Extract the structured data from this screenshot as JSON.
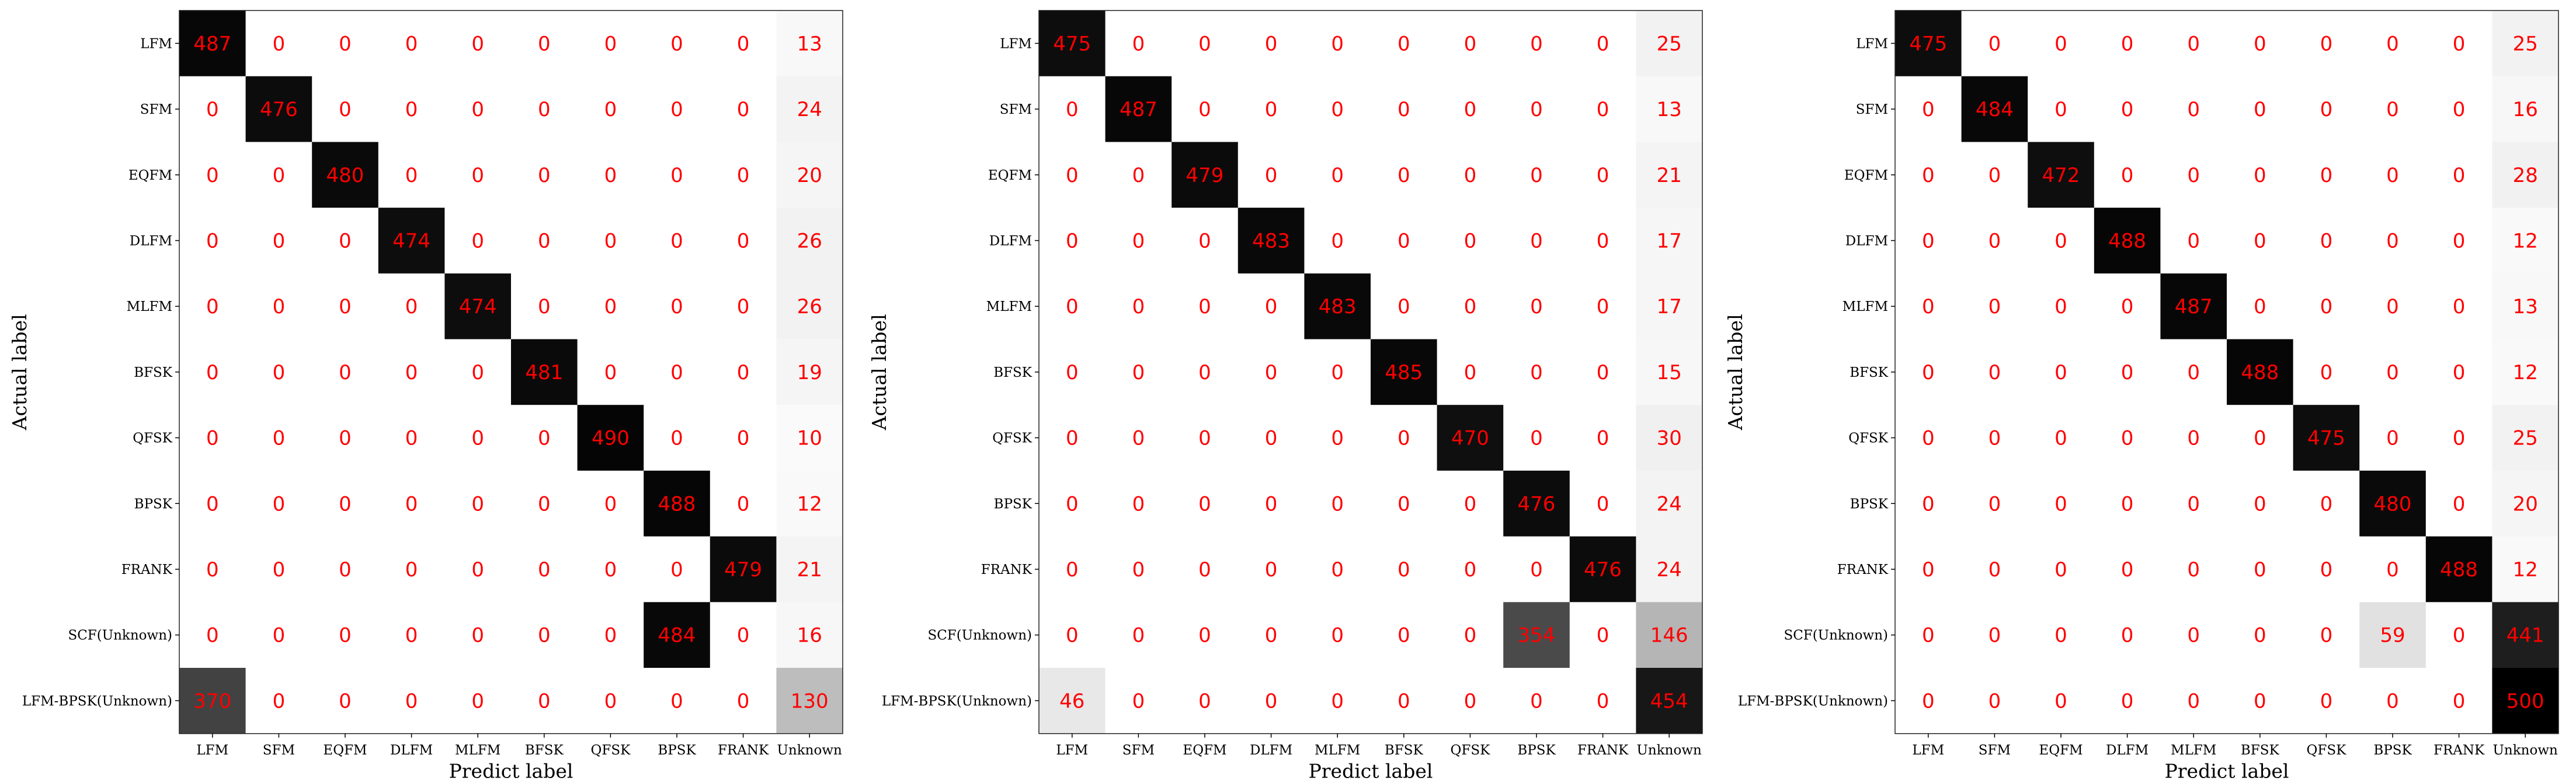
{
  "chart_data": [
    {
      "type": "heatmap",
      "title": "",
      "xlabel": "Predict label",
      "ylabel": "Actual label",
      "x_categories": [
        "LFM",
        "SFM",
        "EQFM",
        "DLFM",
        "MLFM",
        "BFSK",
        "QFSK",
        "BPSK",
        "FRANK",
        "Unknown"
      ],
      "y_categories": [
        "LFM",
        "SFM",
        "EQFM",
        "DLFM",
        "MLFM",
        "BFSK",
        "QFSK",
        "BPSK",
        "FRANK",
        "SCF(Unknown)",
        "LFM-BPSK(Unknown)"
      ],
      "value_range": [
        0,
        500
      ],
      "colormap": "white-to-black",
      "value_color": "#ff0000",
      "matrix": [
        [
          487,
          0,
          0,
          0,
          0,
          0,
          0,
          0,
          0,
          13
        ],
        [
          0,
          476,
          0,
          0,
          0,
          0,
          0,
          0,
          0,
          24
        ],
        [
          0,
          0,
          480,
          0,
          0,
          0,
          0,
          0,
          0,
          20
        ],
        [
          0,
          0,
          0,
          474,
          0,
          0,
          0,
          0,
          0,
          26
        ],
        [
          0,
          0,
          0,
          0,
          474,
          0,
          0,
          0,
          0,
          26
        ],
        [
          0,
          0,
          0,
          0,
          0,
          481,
          0,
          0,
          0,
          19
        ],
        [
          0,
          0,
          0,
          0,
          0,
          0,
          490,
          0,
          0,
          10
        ],
        [
          0,
          0,
          0,
          0,
          0,
          0,
          0,
          488,
          0,
          12
        ],
        [
          0,
          0,
          0,
          0,
          0,
          0,
          0,
          0,
          479,
          21
        ],
        [
          0,
          0,
          0,
          0,
          0,
          0,
          0,
          484,
          0,
          16
        ],
        [
          370,
          0,
          0,
          0,
          0,
          0,
          0,
          0,
          0,
          130
        ]
      ]
    },
    {
      "type": "heatmap",
      "title": "",
      "xlabel": "Predict label",
      "ylabel": "Actual label",
      "x_categories": [
        "LFM",
        "SFM",
        "EQFM",
        "DLFM",
        "MLFM",
        "BFSK",
        "QFSK",
        "BPSK",
        "FRANK",
        "Unknown"
      ],
      "y_categories": [
        "LFM",
        "SFM",
        "EQFM",
        "DLFM",
        "MLFM",
        "BFSK",
        "QFSK",
        "BPSK",
        "FRANK",
        "SCF(Unknown)",
        "LFM-BPSK(Unknown)"
      ],
      "value_range": [
        0,
        500
      ],
      "colormap": "white-to-black",
      "value_color": "#ff0000",
      "matrix": [
        [
          475,
          0,
          0,
          0,
          0,
          0,
          0,
          0,
          0,
          25
        ],
        [
          0,
          487,
          0,
          0,
          0,
          0,
          0,
          0,
          0,
          13
        ],
        [
          0,
          0,
          479,
          0,
          0,
          0,
          0,
          0,
          0,
          21
        ],
        [
          0,
          0,
          0,
          483,
          0,
          0,
          0,
          0,
          0,
          17
        ],
        [
          0,
          0,
          0,
          0,
          483,
          0,
          0,
          0,
          0,
          17
        ],
        [
          0,
          0,
          0,
          0,
          0,
          485,
          0,
          0,
          0,
          15
        ],
        [
          0,
          0,
          0,
          0,
          0,
          0,
          470,
          0,
          0,
          30
        ],
        [
          0,
          0,
          0,
          0,
          0,
          0,
          0,
          476,
          0,
          24
        ],
        [
          0,
          0,
          0,
          0,
          0,
          0,
          0,
          0,
          476,
          24
        ],
        [
          0,
          0,
          0,
          0,
          0,
          0,
          0,
          354,
          0,
          146
        ],
        [
          46,
          0,
          0,
          0,
          0,
          0,
          0,
          0,
          0,
          454
        ]
      ]
    },
    {
      "type": "heatmap",
      "title": "",
      "xlabel": "Predict label",
      "ylabel": "Actual label",
      "x_categories": [
        "LFM",
        "SFM",
        "EQFM",
        "DLFM",
        "MLFM",
        "BFSK",
        "QFSK",
        "BPSK",
        "FRANK",
        "Unknown"
      ],
      "y_categories": [
        "LFM",
        "SFM",
        "EQFM",
        "DLFM",
        "MLFM",
        "BFSK",
        "QFSK",
        "BPSK",
        "FRANK",
        "SCF(Unknown)",
        "LFM-BPSK(Unknown)"
      ],
      "value_range": [
        0,
        500
      ],
      "colormap": "white-to-black",
      "value_color": "#ff0000",
      "matrix": [
        [
          475,
          0,
          0,
          0,
          0,
          0,
          0,
          0,
          0,
          25
        ],
        [
          0,
          484,
          0,
          0,
          0,
          0,
          0,
          0,
          0,
          16
        ],
        [
          0,
          0,
          472,
          0,
          0,
          0,
          0,
          0,
          0,
          28
        ],
        [
          0,
          0,
          0,
          488,
          0,
          0,
          0,
          0,
          0,
          12
        ],
        [
          0,
          0,
          0,
          0,
          487,
          0,
          0,
          0,
          0,
          13
        ],
        [
          0,
          0,
          0,
          0,
          0,
          488,
          0,
          0,
          0,
          12
        ],
        [
          0,
          0,
          0,
          0,
          0,
          0,
          475,
          0,
          0,
          25
        ],
        [
          0,
          0,
          0,
          0,
          0,
          0,
          0,
          480,
          0,
          20
        ],
        [
          0,
          0,
          0,
          0,
          0,
          0,
          0,
          0,
          488,
          12
        ],
        [
          0,
          0,
          0,
          0,
          0,
          0,
          0,
          59,
          0,
          441
        ],
        [
          0,
          0,
          0,
          0,
          0,
          0,
          0,
          0,
          0,
          500
        ]
      ]
    }
  ]
}
